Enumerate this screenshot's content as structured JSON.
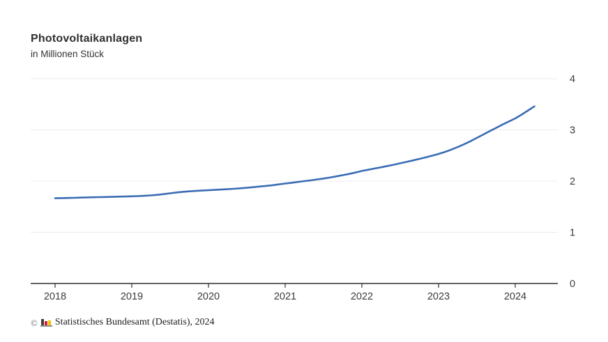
{
  "header": {
    "title": "Photovoltaikanlagen",
    "subtitle": "in Millionen Stück"
  },
  "footer": {
    "copyright_symbol": "©",
    "source": "Statistisches Bundesamt (Destatis), 2024",
    "logo_colors": {
      "bar_dark": "#3f3f3f",
      "bar_red": "#d71e2b",
      "bar_yellow": "#f2bf00",
      "baseline": "#8f8f8f"
    }
  },
  "chart_data": {
    "type": "line",
    "title": "Photovoltaikanlagen",
    "ylabel": "in Millionen Stück",
    "xlabel": "",
    "grid": true,
    "legend": "none",
    "line_color": "#3a6cb5",
    "gridline_color": "#ececec",
    "axis_color": "#2f2f2f",
    "tick_label_color": "#3b3b3b",
    "ylim": [
      0,
      4
    ],
    "y_ticks": [
      0,
      1,
      2,
      3,
      4
    ],
    "y_tick_labels": [
      "0",
      "1",
      "2",
      "3",
      "4"
    ],
    "x_tick_years": [
      2018,
      2019,
      2020,
      2021,
      2022,
      2023,
      2024
    ],
    "x_tick_labels": [
      "2018",
      "2019",
      "2020",
      "2021",
      "2022",
      "2023",
      "2024"
    ],
    "x_start_year": 2018,
    "points_per_year": 12,
    "x_end_label": "2024 (April)",
    "values": [
      1.665,
      1.668,
      1.671,
      1.674,
      1.677,
      1.681,
      1.684,
      1.687,
      1.69,
      1.693,
      1.696,
      1.7,
      1.703,
      1.707,
      1.713,
      1.721,
      1.732,
      1.746,
      1.762,
      1.778,
      1.79,
      1.8,
      1.808,
      1.815,
      1.822,
      1.828,
      1.835,
      1.842,
      1.85,
      1.86,
      1.87,
      1.882,
      1.894,
      1.906,
      1.92,
      1.936,
      1.952,
      1.968,
      1.984,
      2.0,
      2.015,
      2.032,
      2.05,
      2.07,
      2.092,
      2.115,
      2.14,
      2.168,
      2.198,
      2.222,
      2.246,
      2.27,
      2.295,
      2.32,
      2.348,
      2.376,
      2.404,
      2.434,
      2.464,
      2.496,
      2.53,
      2.57,
      2.615,
      2.665,
      2.72,
      2.78,
      2.845,
      2.91,
      2.975,
      3.04,
      3.105,
      3.165,
      3.225,
      3.3,
      3.38,
      3.46
    ]
  }
}
